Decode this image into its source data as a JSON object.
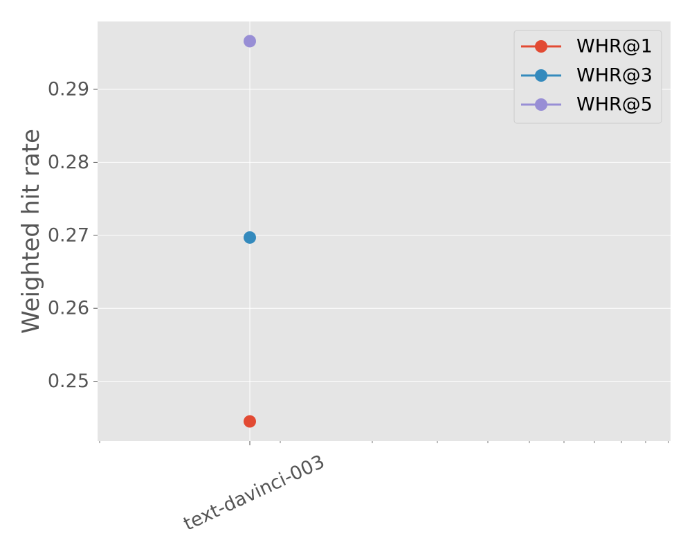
{
  "chart_data": {
    "type": "line",
    "title": "",
    "xlabel": "",
    "ylabel": "Weighted hit rate",
    "categories": [
      "text-davinci-003"
    ],
    "series": [
      {
        "name": "WHR@1",
        "values": [
          0.2445
        ],
        "color": "#E24A33"
      },
      {
        "name": "WHR@3",
        "values": [
          0.2697
        ],
        "color": "#348ABD"
      },
      {
        "name": "WHR@5",
        "values": [
          0.2966
        ],
        "color": "#988ED5"
      }
    ],
    "ylim": [
      0.2418,
      0.2993
    ],
    "yticks": [
      0.25,
      0.26,
      0.27,
      0.28,
      0.29
    ],
    "ytick_labels": [
      "0.25",
      "0.26",
      "0.27",
      "0.28",
      "0.29"
    ],
    "grid": true,
    "legend_position": "top-right",
    "background_color": "#E5E5E5"
  }
}
